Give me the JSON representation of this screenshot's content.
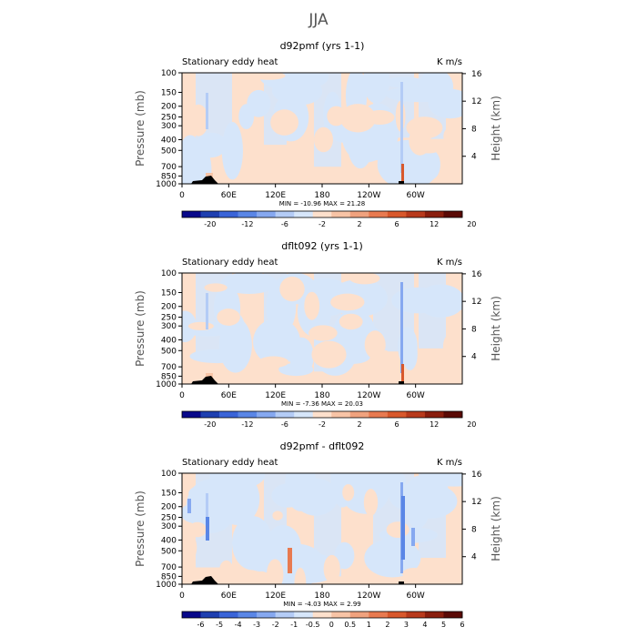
{
  "figure_title": "JJA",
  "chart_data": [
    {
      "type": "heatmap",
      "title": "d92pmf (yrs 1-1)",
      "left_label": "Stationary eddy heat",
      "right_label": "K m/s",
      "ylabel": "Pressure (mb)",
      "ylabel_right": "Height (km)",
      "x_ticks": [
        "0",
        "60E",
        "120E",
        "180",
        "120W",
        "60W"
      ],
      "y_ticks": [
        "100",
        "150",
        "200",
        "250",
        "300",
        "400",
        "500",
        "700",
        "850",
        "1000"
      ],
      "y_ticks_right": [
        "16",
        "12",
        "8",
        "4"
      ],
      "stats_text": "MIN = -10.96   MAX =  21.28",
      "min": -10.96,
      "max": 21.28,
      "colorbar_labels": [
        "-20",
        "-12",
        "-6",
        "-2",
        "2",
        "6",
        "12",
        "20"
      ]
    },
    {
      "type": "heatmap",
      "title": "dflt092 (yrs 1-1)",
      "left_label": "Stationary eddy heat",
      "right_label": "K m/s",
      "ylabel": "Pressure (mb)",
      "ylabel_right": "Height (km)",
      "x_ticks": [
        "0",
        "60E",
        "120E",
        "180",
        "120W",
        "60W"
      ],
      "y_ticks": [
        "100",
        "150",
        "200",
        "250",
        "300",
        "400",
        "500",
        "700",
        "850",
        "1000"
      ],
      "y_ticks_right": [
        "16",
        "12",
        "8",
        "4"
      ],
      "stats_text": "MIN = -7.36   MAX =  20.03",
      "min": -7.36,
      "max": 20.03,
      "colorbar_labels": [
        "-20",
        "-12",
        "-6",
        "-2",
        "2",
        "6",
        "12",
        "20"
      ]
    },
    {
      "type": "heatmap",
      "title": "d92pmf - dflt092",
      "left_label": "Stationary eddy heat",
      "right_label": "K m/s",
      "ylabel": "Pressure (mb)",
      "ylabel_right": "Height (km)",
      "x_ticks": [
        "0",
        "60E",
        "120E",
        "180",
        "120W",
        "60W"
      ],
      "y_ticks": [
        "100",
        "150",
        "200",
        "250",
        "300",
        "400",
        "500",
        "700",
        "850",
        "1000"
      ],
      "y_ticks_right": [
        "16",
        "12",
        "8",
        "4"
      ],
      "stats_text": "MIN = -4.03   MAX =  2.99",
      "min": -4.03,
      "max": 2.99,
      "colorbar_labels": [
        "-6",
        "-5",
        "-4",
        "-3",
        "-2",
        "-1",
        "-0.5",
        "0",
        "0.5",
        "1",
        "2",
        "3",
        "4",
        "5",
        "6"
      ]
    }
  ],
  "colorbar_colors": [
    "#08088a",
    "#1e3fb0",
    "#3a64d8",
    "#5a86e6",
    "#86a8f0",
    "#b4ccf6",
    "#d6e6fa",
    "#fde0cc",
    "#f8c4a6",
    "#f0a27e",
    "#e87a50",
    "#d8582c",
    "#b83a1c",
    "#8a1e0e",
    "#5a0a06"
  ]
}
